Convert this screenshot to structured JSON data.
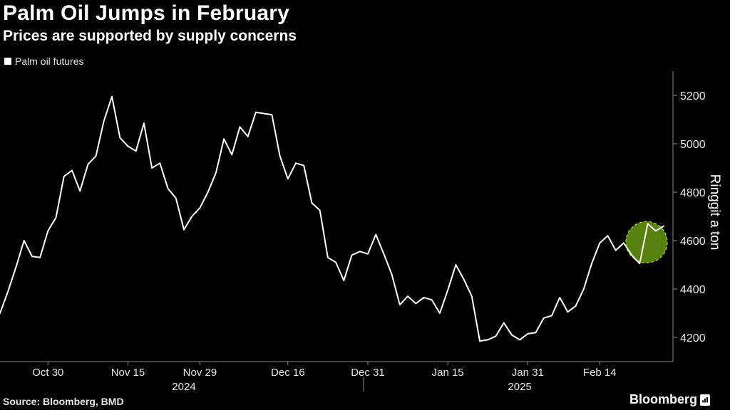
{
  "header": {
    "title": "Palm Oil Jumps in February",
    "subtitle": "Prices are supported by supply concerns"
  },
  "legend": {
    "label": "Palm oil futures",
    "color": "#ffffff"
  },
  "footer": {
    "source": "Source: Bloomberg, BMD",
    "brand": "Bloomberg"
  },
  "colors": {
    "background": "#000000",
    "line": "#ffffff",
    "highlight_fill": "#5f8f10",
    "highlight_stroke": "#b5e61d",
    "axis": "#8a8a8a"
  },
  "chart_data": {
    "type": "line",
    "title": "Palm Oil Jumps in February",
    "subtitle": "Prices are supported by supply concerns",
    "ylabel": "Ringgit a ton",
    "xlabel": "",
    "ylim": [
      4100,
      5300
    ],
    "yticks": [
      4200,
      4400,
      4600,
      4800,
      5000,
      5200
    ],
    "y_axis_position": "right",
    "grid": false,
    "legend_position": "top-left",
    "x_ticks": [
      "Oct 30",
      "Nov 15",
      "Nov 29",
      "Dec 16",
      "Dec 31",
      "Jan 15",
      "Jan 31",
      "Feb 14"
    ],
    "x_tick_index": [
      6,
      16,
      25,
      36,
      46,
      56,
      66,
      75
    ],
    "year_labels": [
      {
        "label": "2024",
        "center_index": 23
      },
      {
        "label": "2025",
        "center_index": 65
      }
    ],
    "year_divider_index": 46,
    "highlight_index": [
      80,
      81
    ],
    "series": [
      {
        "name": "Palm oil futures",
        "values": [
          4300,
          4390,
          4490,
          4600,
          4535,
          4530,
          4640,
          4695,
          4865,
          4890,
          4805,
          4915,
          4950,
          5095,
          5195,
          5025,
          4990,
          4970,
          5085,
          4900,
          4920,
          4815,
          4775,
          4645,
          4700,
          4735,
          4800,
          4880,
          5020,
          4955,
          5070,
          5030,
          5130,
          5125,
          5120,
          4950,
          4855,
          4920,
          4910,
          4755,
          4725,
          4530,
          4510,
          4435,
          4540,
          4555,
          4545,
          4625,
          4545,
          4460,
          4335,
          4370,
          4340,
          4365,
          4355,
          4300,
          4395,
          4500,
          4440,
          4370,
          4185,
          4190,
          4205,
          4260,
          4210,
          4190,
          4215,
          4220,
          4280,
          4290,
          4365,
          4305,
          4330,
          4400,
          4505,
          4590,
          4620,
          4560,
          4590,
          4540,
          4505,
          4670,
          4640,
          4660
        ]
      }
    ]
  }
}
